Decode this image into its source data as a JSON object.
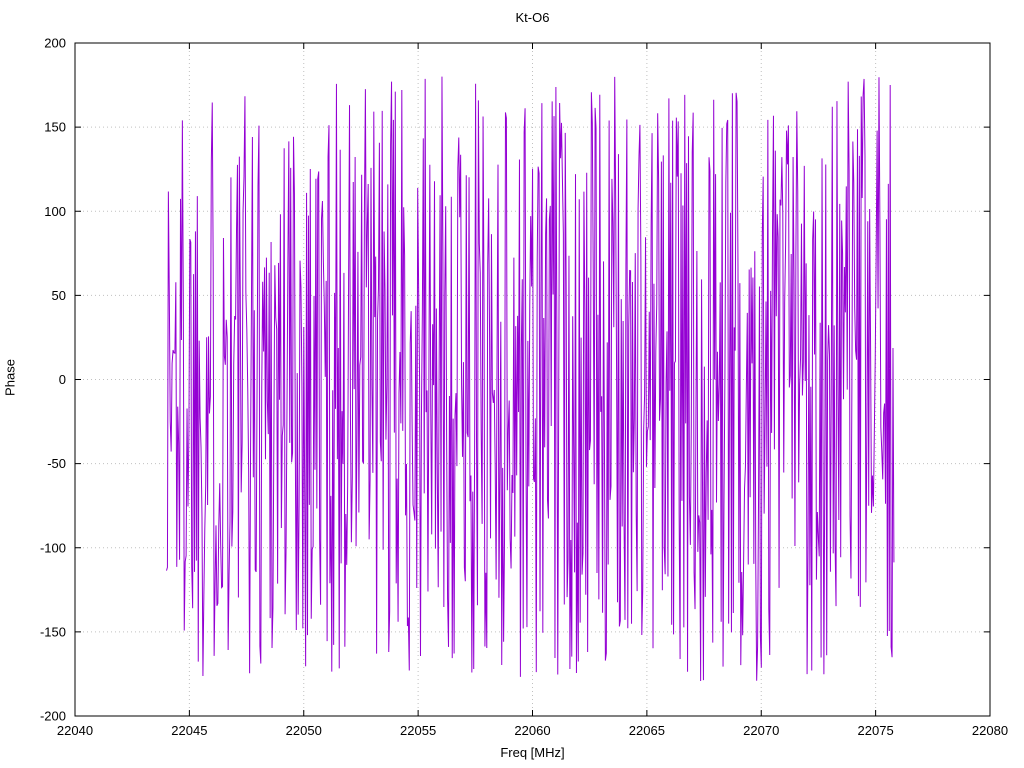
{
  "chart": {
    "title": "Kt-O6",
    "xlabel": "Freq [MHz]",
    "ylabel": "Phase"
  },
  "chart_data": {
    "type": "line",
    "title": "Kt-O6",
    "xlabel": "Freq [MHz]",
    "ylabel": "Phase",
    "xlim": [
      22040,
      22080
    ],
    "ylim": [
      -200,
      200
    ],
    "x_ticks": [
      22040,
      22045,
      22050,
      22055,
      22060,
      22065,
      22070,
      22075,
      22080
    ],
    "y_ticks": [
      -200,
      -150,
      -100,
      -50,
      0,
      50,
      100,
      150,
      200
    ],
    "grid": true,
    "grid_style": "dotted",
    "grid_color": "#c0c0c0",
    "legend_position": "none",
    "background_color": "#ffffff",
    "border_color": "#000000",
    "series": [
      {
        "name": "phase",
        "color": "#9400d3",
        "line_width": 1,
        "x_start": 22044.0,
        "x_end": 22075.8,
        "n_points": 780,
        "y_distribution": "uniform_random_wrapped_phase",
        "y_min": -180,
        "y_max": 180,
        "seed": 1337
      }
    ]
  }
}
